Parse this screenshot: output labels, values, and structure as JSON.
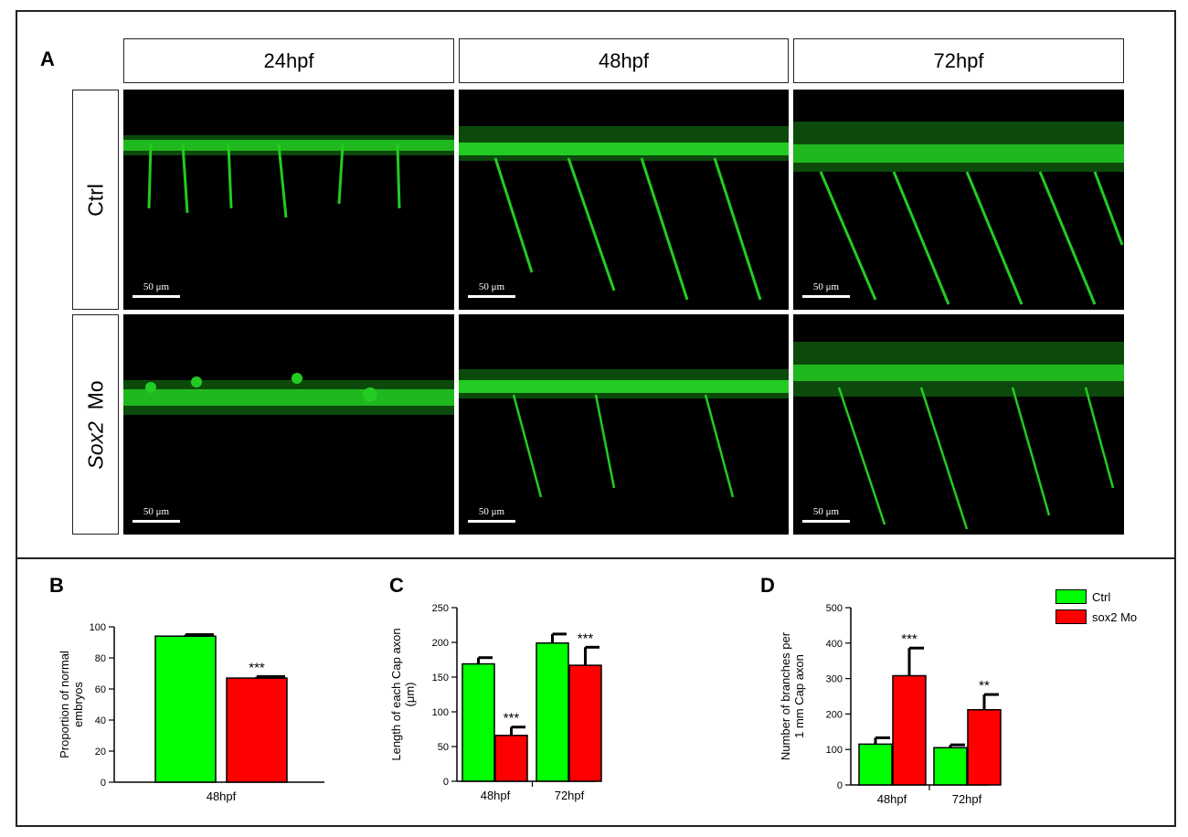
{
  "panels": {
    "a": "A",
    "b": "B",
    "c": "C",
    "d": "D"
  },
  "figure": {
    "columns": [
      "24hpf",
      "48hpf",
      "72hpf"
    ],
    "rows": {
      "ctrl": "Ctrl",
      "sox2_mo_italic": "Sox2",
      "sox2_mo_plain": "Mo"
    },
    "scale_bar": "50 μm"
  },
  "colors": {
    "ctrl": "#00ff00",
    "sox2_mo": "#ff0000",
    "fluorescence": "#19e619"
  },
  "legend": {
    "ctrl": "Ctrl",
    "sox2_mo": "sox2 Mo"
  },
  "chart_data": [
    {
      "type": "bar",
      "panel": "B",
      "categories": [
        "48hpf"
      ],
      "series": [
        {
          "name": "Ctrl",
          "values": [
            94
          ],
          "errors": [
            1
          ]
        },
        {
          "name": "sox2 Mo",
          "values": [
            67
          ],
          "errors": [
            1
          ]
        }
      ],
      "significance": [
        "***"
      ],
      "ylabel": [
        "Proportion of normal",
        "embryos"
      ],
      "ylim": [
        0,
        100
      ],
      "yticks": [
        0,
        20,
        40,
        60,
        80,
        100
      ]
    },
    {
      "type": "bar",
      "panel": "C",
      "categories": [
        "48hpf",
        "72hpf"
      ],
      "series": [
        {
          "name": "Ctrl",
          "values": [
            169,
            199
          ],
          "errors": [
            9,
            13
          ]
        },
        {
          "name": "sox2 Mo",
          "values": [
            66,
            167
          ],
          "errors": [
            12,
            26
          ]
        }
      ],
      "significance": [
        "***",
        "***"
      ],
      "ylabel": [
        "Length of each Cap axon",
        "(μm)"
      ],
      "ylim": [
        0,
        250
      ],
      "yticks": [
        0,
        50,
        100,
        150,
        200,
        250
      ]
    },
    {
      "type": "bar",
      "panel": "D",
      "categories": [
        "48hpf",
        "72hpf"
      ],
      "series": [
        {
          "name": "Ctrl",
          "values": [
            115,
            105
          ],
          "errors": [
            18,
            8
          ]
        },
        {
          "name": "sox2 Mo",
          "values": [
            308,
            212
          ],
          "errors": [
            78,
            43
          ]
        }
      ],
      "significance": [
        "***",
        "**"
      ],
      "ylabel": [
        "Number of branches per",
        "1 mm Cap axon"
      ],
      "ylim": [
        0,
        500
      ],
      "yticks": [
        0,
        100,
        200,
        300,
        400,
        500
      ]
    }
  ]
}
